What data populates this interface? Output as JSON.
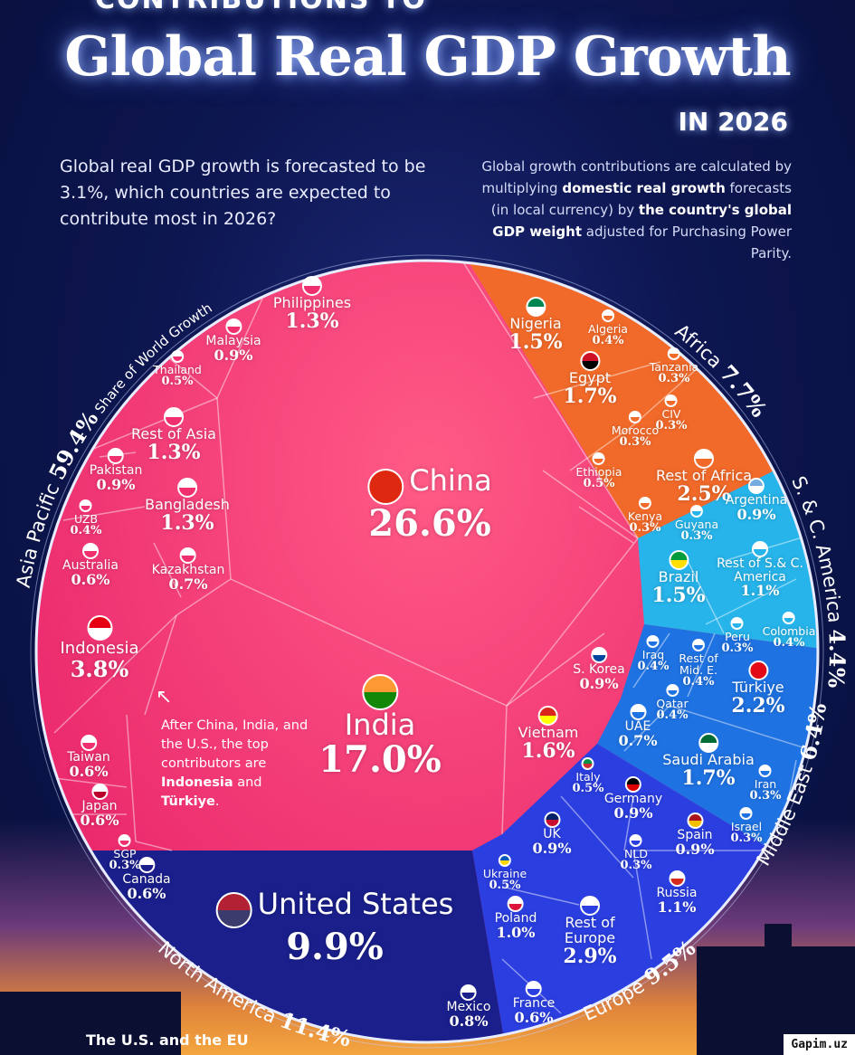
{
  "header": {
    "supertitle": "CONTRIBUTIONS TO",
    "title": "Global Real GDP Growth",
    "year": "IN 2026",
    "question": "Global real GDP growth is forecasted to be 3.1%, which countries are expected to contribute most in 2026?",
    "explanation": {
      "p1": "Global growth contributions are calculated by multiplying ",
      "b1": "domestic real growth",
      "p2": " forecasts (in local currency) by ",
      "b2": "the country's global GDP weight",
      "p3": " adjusted for Purchasing Power Parity."
    }
  },
  "annotation": {
    "text": "After China, India, and the U.S., the top contributors are ",
    "b1": "Indonesia",
    "and": " and ",
    "b2": "Türkiye",
    "end": "."
  },
  "footer": "The U.S. and the EU",
  "watermark": "Gapim.uz",
  "chart_data": {
    "type": "voronoi-treemap",
    "unit": "%",
    "regions": [
      {
        "name": "Asia Pacific",
        "value": 59.4,
        "label_suffix": "Share of World Growth",
        "color": "#f0306e",
        "countries": [
          {
            "name": "China",
            "value": 26.6
          },
          {
            "name": "India",
            "value": 17.0
          },
          {
            "name": "Indonesia",
            "value": 3.8
          },
          {
            "name": "Philippines",
            "value": 1.3
          },
          {
            "name": "Malaysia",
            "value": 0.9
          },
          {
            "name": "Thailand",
            "value": 0.5
          },
          {
            "name": "Rest of Asia",
            "value": 1.3
          },
          {
            "name": "Pakistan",
            "value": 0.9
          },
          {
            "name": "Bangladesh",
            "value": 1.3
          },
          {
            "name": "UZB",
            "value": 0.4
          },
          {
            "name": "Australia",
            "value": 0.6
          },
          {
            "name": "Kazakhstan",
            "value": 0.7
          },
          {
            "name": "Taiwan",
            "value": 0.6
          },
          {
            "name": "Japan",
            "value": 0.6
          },
          {
            "name": "SGP",
            "value": 0.3
          },
          {
            "name": "S. Korea",
            "value": 0.9
          },
          {
            "name": "Vietnam",
            "value": 1.6
          }
        ]
      },
      {
        "name": "Africa",
        "value": 7.7,
        "color": "#f26a2a",
        "countries": [
          {
            "name": "Nigeria",
            "value": 1.5
          },
          {
            "name": "Algeria",
            "value": 0.4
          },
          {
            "name": "Egypt",
            "value": 1.7
          },
          {
            "name": "Tanzania",
            "value": 0.3
          },
          {
            "name": "CIV",
            "value": 0.3
          },
          {
            "name": "Morocco",
            "value": 0.3
          },
          {
            "name": "Ethiopia",
            "value": 0.5
          },
          {
            "name": "Rest of Africa",
            "value": 2.5
          },
          {
            "name": "Kenya",
            "value": 0.3
          }
        ]
      },
      {
        "name": "S. & C. America",
        "value": 4.4,
        "color": "#27b4ea",
        "countries": [
          {
            "name": "Guyana",
            "value": 0.3
          },
          {
            "name": "Argentina",
            "value": 0.9
          },
          {
            "name": "Brazil",
            "value": 1.5
          },
          {
            "name": "Rest of S.& C. America",
            "value": 1.1
          },
          {
            "name": "Peru",
            "value": 0.3
          },
          {
            "name": "Colombia",
            "value": 0.4
          }
        ]
      },
      {
        "name": "Middle East",
        "value": 6.4,
        "color": "#1f72e2",
        "countries": [
          {
            "name": "Iraq",
            "value": 0.4
          },
          {
            "name": "Rest of Mid. E.",
            "value": 0.4
          },
          {
            "name": "Qatar",
            "value": 0.4
          },
          {
            "name": "Türkiye",
            "value": 2.2
          },
          {
            "name": "UAE",
            "value": 0.7
          },
          {
            "name": "Saudi Arabia",
            "value": 1.7
          },
          {
            "name": "Iran",
            "value": 0.3
          },
          {
            "name": "Israel",
            "value": 0.3
          }
        ]
      },
      {
        "name": "Europe",
        "value": 9.5,
        "color": "#2b3ee0",
        "countries": [
          {
            "name": "Italy",
            "value": 0.5
          },
          {
            "name": "Germany",
            "value": 0.9
          },
          {
            "name": "UK",
            "value": 0.9
          },
          {
            "name": "NLD",
            "value": 0.3
          },
          {
            "name": "Spain",
            "value": 0.9
          },
          {
            "name": "Ukraine",
            "value": 0.5
          },
          {
            "name": "Russia",
            "value": 1.1
          },
          {
            "name": "Poland",
            "value": 1.0
          },
          {
            "name": "Rest of Europe",
            "value": 2.9
          },
          {
            "name": "France",
            "value": 0.6
          }
        ]
      },
      {
        "name": "North America",
        "value": 11.4,
        "color": "#1a1f8c",
        "countries": [
          {
            "name": "United States",
            "value": 9.9
          },
          {
            "name": "Canada",
            "value": 0.6
          },
          {
            "name": "Mexico",
            "value": 0.8
          }
        ]
      }
    ]
  }
}
